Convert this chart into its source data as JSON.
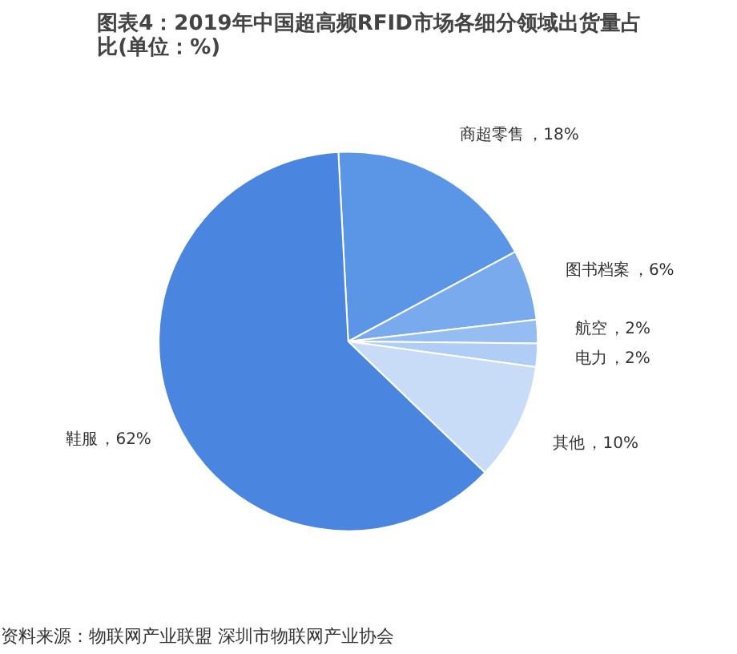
{
  "chart_data": {
    "type": "pie",
    "title": "图表4：2019年中国超高频RFID市场各细分领域出货量占比(单位：%)",
    "categories": [
      "商超零售",
      "图书档案",
      "航空",
      "电力",
      "其他",
      "鞋服"
    ],
    "values": [
      18,
      6,
      2,
      2,
      10,
      62
    ],
    "colors": [
      "#5b95e6",
      "#7aaaee",
      "#95bdf2",
      "#afcdf5",
      "#c8dcf8",
      "#4a86e0"
    ],
    "value_labels": [
      "，18%",
      "，6%",
      "，2%",
      "，2%",
      "，10%",
      "，62%"
    ],
    "annotations": [
      "资料来源：物联网产业联盟 深圳市物联网产业协会"
    ]
  }
}
